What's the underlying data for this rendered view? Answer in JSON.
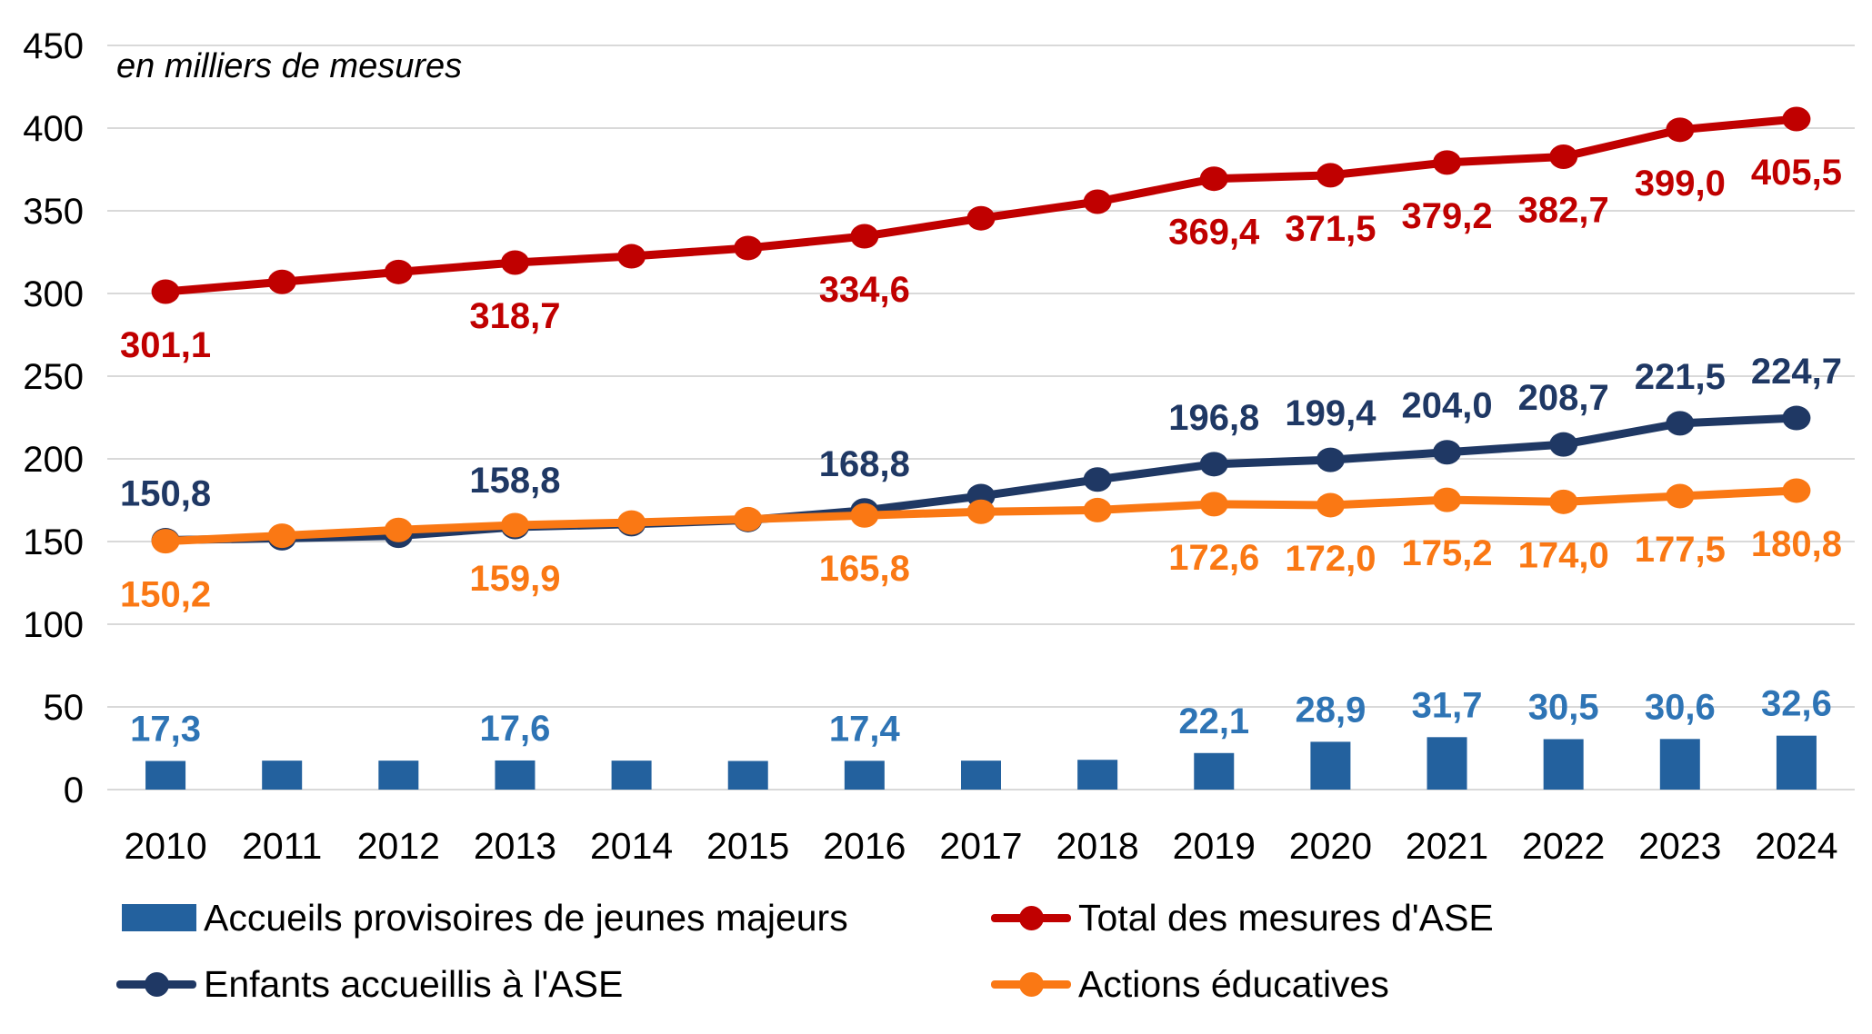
{
  "subtitle": "en milliers de mesures",
  "chart_data": {
    "type": "composite-bar-line",
    "title": "",
    "subtitle": "en milliers de mesures",
    "categories": [
      "2010",
      "2011",
      "2012",
      "2013",
      "2014",
      "2015",
      "2016",
      "2017",
      "2018",
      "2019",
      "2020",
      "2021",
      "2022",
      "2023",
      "2024"
    ],
    "ylim": [
      0,
      450
    ],
    "y_step": 50,
    "y_ticks": [
      "450",
      "400",
      "350",
      "300",
      "250",
      "200",
      "150",
      "100",
      "50",
      "0"
    ],
    "grid": "horizontal",
    "legend_position": "bottom",
    "series": [
      {
        "name": "Accueils provisoires de jeunes majeurs",
        "type": "bar",
        "color": "#23619E",
        "label_color": "#2E74B5",
        "values": [
          17.3,
          17.5,
          17.5,
          17.6,
          17.5,
          17.3,
          17.4,
          17.5,
          18.0,
          22.1,
          28.9,
          31.7,
          30.5,
          30.6,
          32.6
        ],
        "labels": [
          "17,3",
          null,
          null,
          "17,6",
          null,
          null,
          "17,4",
          null,
          null,
          "22,1",
          "28,9",
          "31,7",
          "30,5",
          "30,6",
          "32,6"
        ],
        "label_position": "above"
      },
      {
        "name": "Enfants accueillis à l'ASE",
        "type": "line",
        "color": "#1F3864",
        "label_color": "#1F3864",
        "values": [
          150.8,
          152.0,
          153.5,
          158.8,
          160.5,
          163.0,
          168.8,
          177.5,
          187.5,
          196.8,
          199.4,
          204.0,
          208.7,
          221.5,
          224.7
        ],
        "labels": [
          "150,8",
          null,
          null,
          "158,8",
          null,
          null,
          "168,8",
          null,
          null,
          "196,8",
          "199,4",
          "204,0",
          "208,7",
          "221,5",
          "224,7"
        ],
        "label_position": "above"
      },
      {
        "name": "Actions éducatives",
        "type": "line",
        "color": "#FA7814",
        "label_color": "#FA7814",
        "values": [
          150.2,
          153.5,
          157.0,
          159.9,
          161.5,
          163.5,
          165.8,
          168.0,
          169.0,
          172.6,
          172.0,
          175.2,
          174.0,
          177.5,
          180.8
        ],
        "labels": [
          "150,2",
          null,
          null,
          "159,9",
          null,
          null,
          "165,8",
          null,
          null,
          "172,6",
          "172,0",
          "175,2",
          "174,0",
          "177,5",
          "180,8"
        ],
        "label_position": "below"
      },
      {
        "name": "Total des mesures d'ASE",
        "type": "line",
        "color": "#C00000",
        "label_color": "#C00000",
        "values": [
          301.1,
          307.0,
          313.0,
          318.7,
          322.5,
          327.5,
          334.6,
          345.5,
          355.5,
          369.4,
          371.5,
          379.2,
          382.7,
          399.0,
          405.5
        ],
        "labels": [
          "301,1",
          null,
          null,
          "318,7",
          null,
          null,
          "334,6",
          null,
          null,
          "369,4",
          "371,5",
          "379,2",
          "382,7",
          "399,0",
          "405,5"
        ],
        "label_position": "below"
      }
    ]
  },
  "legend": {
    "items": [
      {
        "label": "Accueils provisoires de jeunes majeurs",
        "swatch": "bar",
        "color": "#23619E"
      },
      {
        "label": "Total des mesures d'ASE",
        "swatch": "line-dot",
        "color": "#C00000"
      },
      {
        "label": "Enfants accueillis à l'ASE",
        "swatch": "line-dot",
        "color": "#1F3864"
      },
      {
        "label": "Actions éducatives",
        "swatch": "line-dot",
        "color": "#FA7814"
      }
    ]
  }
}
